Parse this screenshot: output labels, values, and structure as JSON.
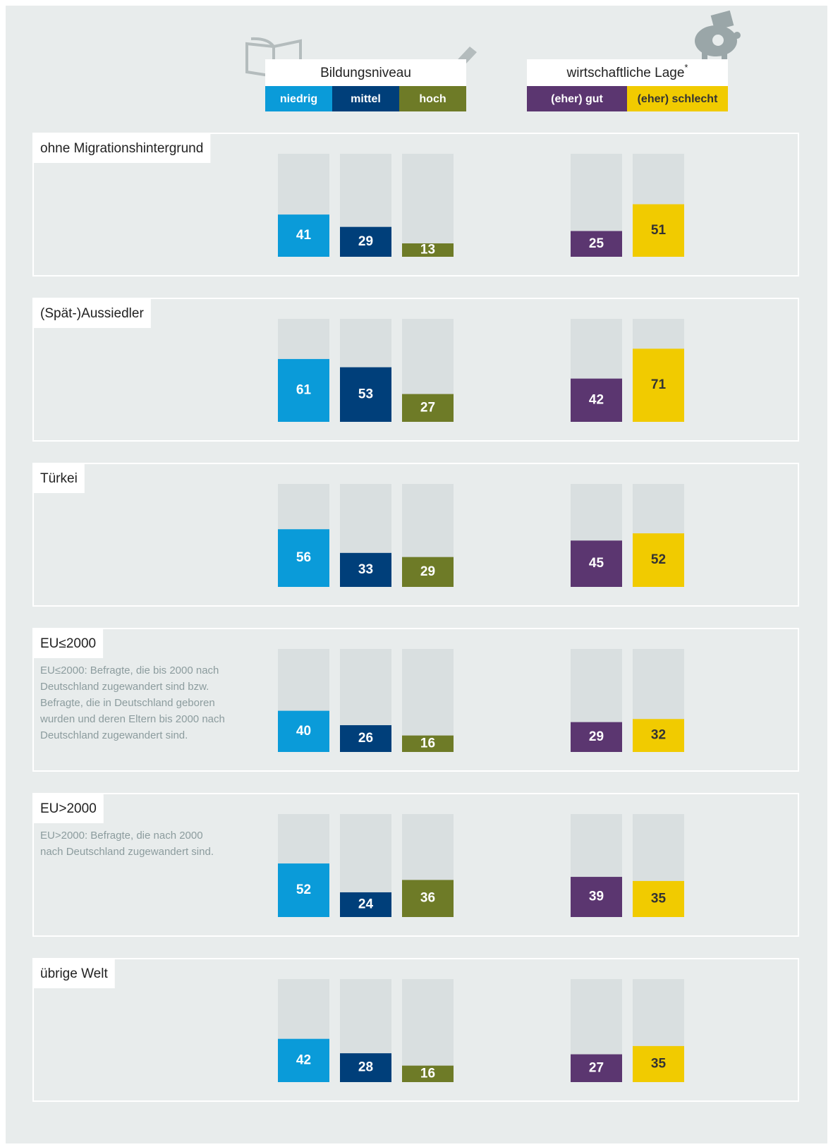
{
  "chart_data": {
    "type": "bar",
    "ylim": [
      0,
      100
    ],
    "series_groups": [
      {
        "title": "Bildungsniveau"
      },
      {
        "title": "wirtschaftliche Lage",
        "marker": "*"
      }
    ],
    "categories": [
      "ohne Migrationshintergrund",
      "(Spät-)Aussiedler",
      "Türkei",
      "EU≤2000",
      "EU>2000",
      "übrige Welt"
    ],
    "annotations": [
      [
        "EU≤2000: Befragte, die bis 2000 nach",
        "Deutschland zugewandert sind bzw.",
        "Befragte, die in Deutschland geboren",
        "wurden und deren Eltern bis 2000 nach",
        "Deutschland zugewandert sind."
      ],
      [
        "EU>2000: Befragte, die nach 2000",
        "nach Deutschland zugewandert sind."
      ]
    ],
    "series": [
      {
        "name": "niedrig",
        "color": "#0a9bd9",
        "values": [
          41,
          61,
          56,
          40,
          52,
          42
        ]
      },
      {
        "name": "mittel",
        "color": "#003f7a",
        "values": [
          29,
          53,
          33,
          26,
          24,
          28
        ]
      },
      {
        "name": "hoch",
        "color": "#6e7b27",
        "values": [
          13,
          27,
          29,
          16,
          36,
          16
        ]
      },
      {
        "name": "(eher) gut",
        "color": "#5b3670",
        "values": [
          25,
          42,
          45,
          29,
          39,
          27
        ]
      },
      {
        "name": "(eher) schlecht",
        "color": "#f1cb00",
        "values": [
          51,
          71,
          52,
          32,
          35,
          35
        ]
      }
    ]
  }
}
